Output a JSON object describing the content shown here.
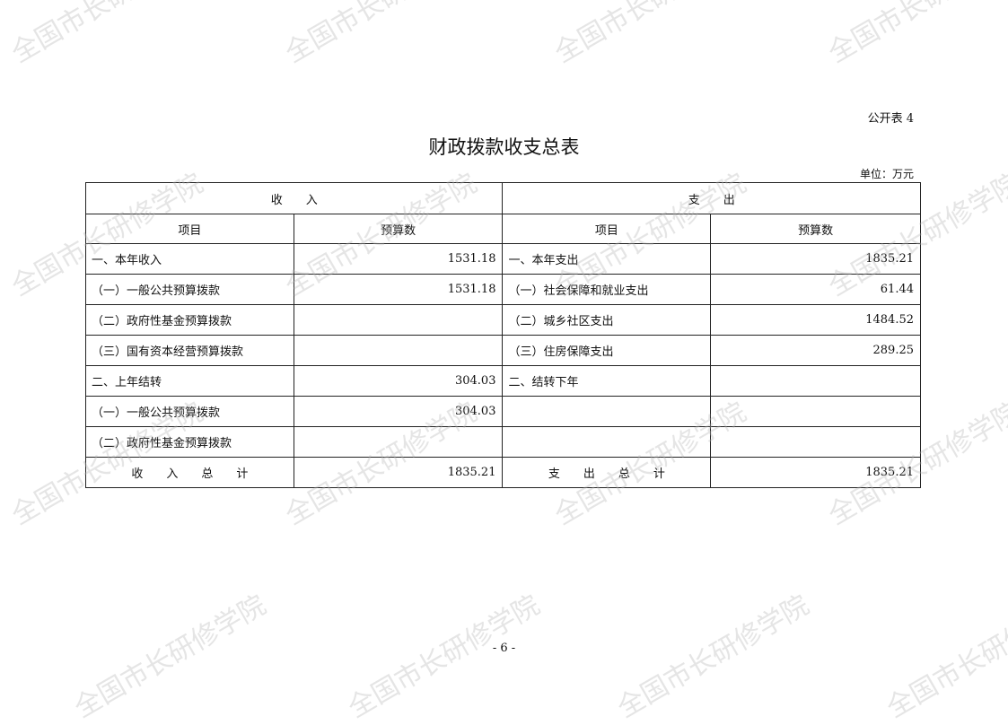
{
  "watermark": "全国市长研修学院",
  "table_tag": "公开表 4",
  "title": "财政拨款收支总表",
  "unit": "单位：万元",
  "headers": {
    "income": "收　　入",
    "expense": "支　　出",
    "item": "项目",
    "budget": "预算数"
  },
  "rows": [
    {
      "in_item": "一、本年收入",
      "in_val": "1531.18",
      "out_item": "一、本年支出",
      "out_val": "1835.21"
    },
    {
      "in_item": "（一）一般公共预算拨款",
      "in_val": "1531.18",
      "out_item": "（一）社会保障和就业支出",
      "out_val": "61.44"
    },
    {
      "in_item": "（二）政府性基金预算拨款",
      "in_val": "",
      "out_item": "（二）城乡社区支出",
      "out_val": "1484.52"
    },
    {
      "in_item": "（三）国有资本经营预算拨款",
      "in_val": "",
      "out_item": "（三）住房保障支出",
      "out_val": "289.25"
    },
    {
      "in_item": "二、上年结转",
      "in_val": "304.03",
      "out_item": "二、结转下年",
      "out_val": ""
    },
    {
      "in_item": "（一）一般公共预算拨款",
      "in_val": "304.03",
      "out_item": "",
      "out_val": ""
    },
    {
      "in_item": "（二）政府性基金预算拨款",
      "in_val": "",
      "out_item": "",
      "out_val": ""
    }
  ],
  "totals": {
    "in_label": "收　　入　　总　　计",
    "in_val": "1835.21",
    "out_label": "支　　出　　总　　计",
    "out_val": "1835.21"
  },
  "page_number": "- 6 -"
}
